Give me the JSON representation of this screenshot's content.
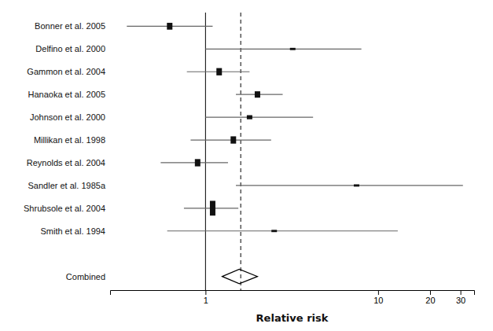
{
  "chart_data": {
    "type": "forest",
    "xlabel": "Relative risk",
    "categories": [
      "Bonner et al. 2005",
      "Delfino et al. 2000",
      "Gammon et al. 2004",
      "Hanaoka et al. 2005",
      "Johnson et al. 2000",
      "Millikan et al. 1998",
      "Reynolds et al. 2004",
      "Sandler et al. 1985a",
      "Shrubsole et al. 2004",
      "Smith et al. 1994",
      null,
      "Combined"
    ],
    "values": [
      0.62,
      3.2,
      1.2,
      2.0,
      1.8,
      1.45,
      0.9,
      7.5,
      1.1,
      2.5,
      null,
      1.57
    ],
    "ci_lo": [
      0.35,
      1.0,
      0.78,
      1.5,
      1.0,
      0.82,
      0.55,
      1.5,
      0.75,
      0.6,
      null,
      1.25
    ],
    "ci_hi": [
      1.1,
      8.0,
      1.8,
      2.8,
      4.2,
      2.4,
      1.35,
      31.0,
      1.55,
      13.0,
      null,
      2.0
    ],
    "box_sizes": [
      0.3,
      0.1,
      0.32,
      0.28,
      0.18,
      0.32,
      0.32,
      0.1,
      0.65,
      0.1,
      null,
      null
    ],
    "ref_lines": [
      {
        "value": 1,
        "line_style": "solid"
      },
      {
        "value": 1.6,
        "line_style": "dashed"
      }
    ],
    "color": "#111111",
    "log": "x",
    "xlim": [
      0.28,
      36
    ],
    "xticks": [
      1,
      10,
      20,
      30
    ],
    "grid": false
  }
}
